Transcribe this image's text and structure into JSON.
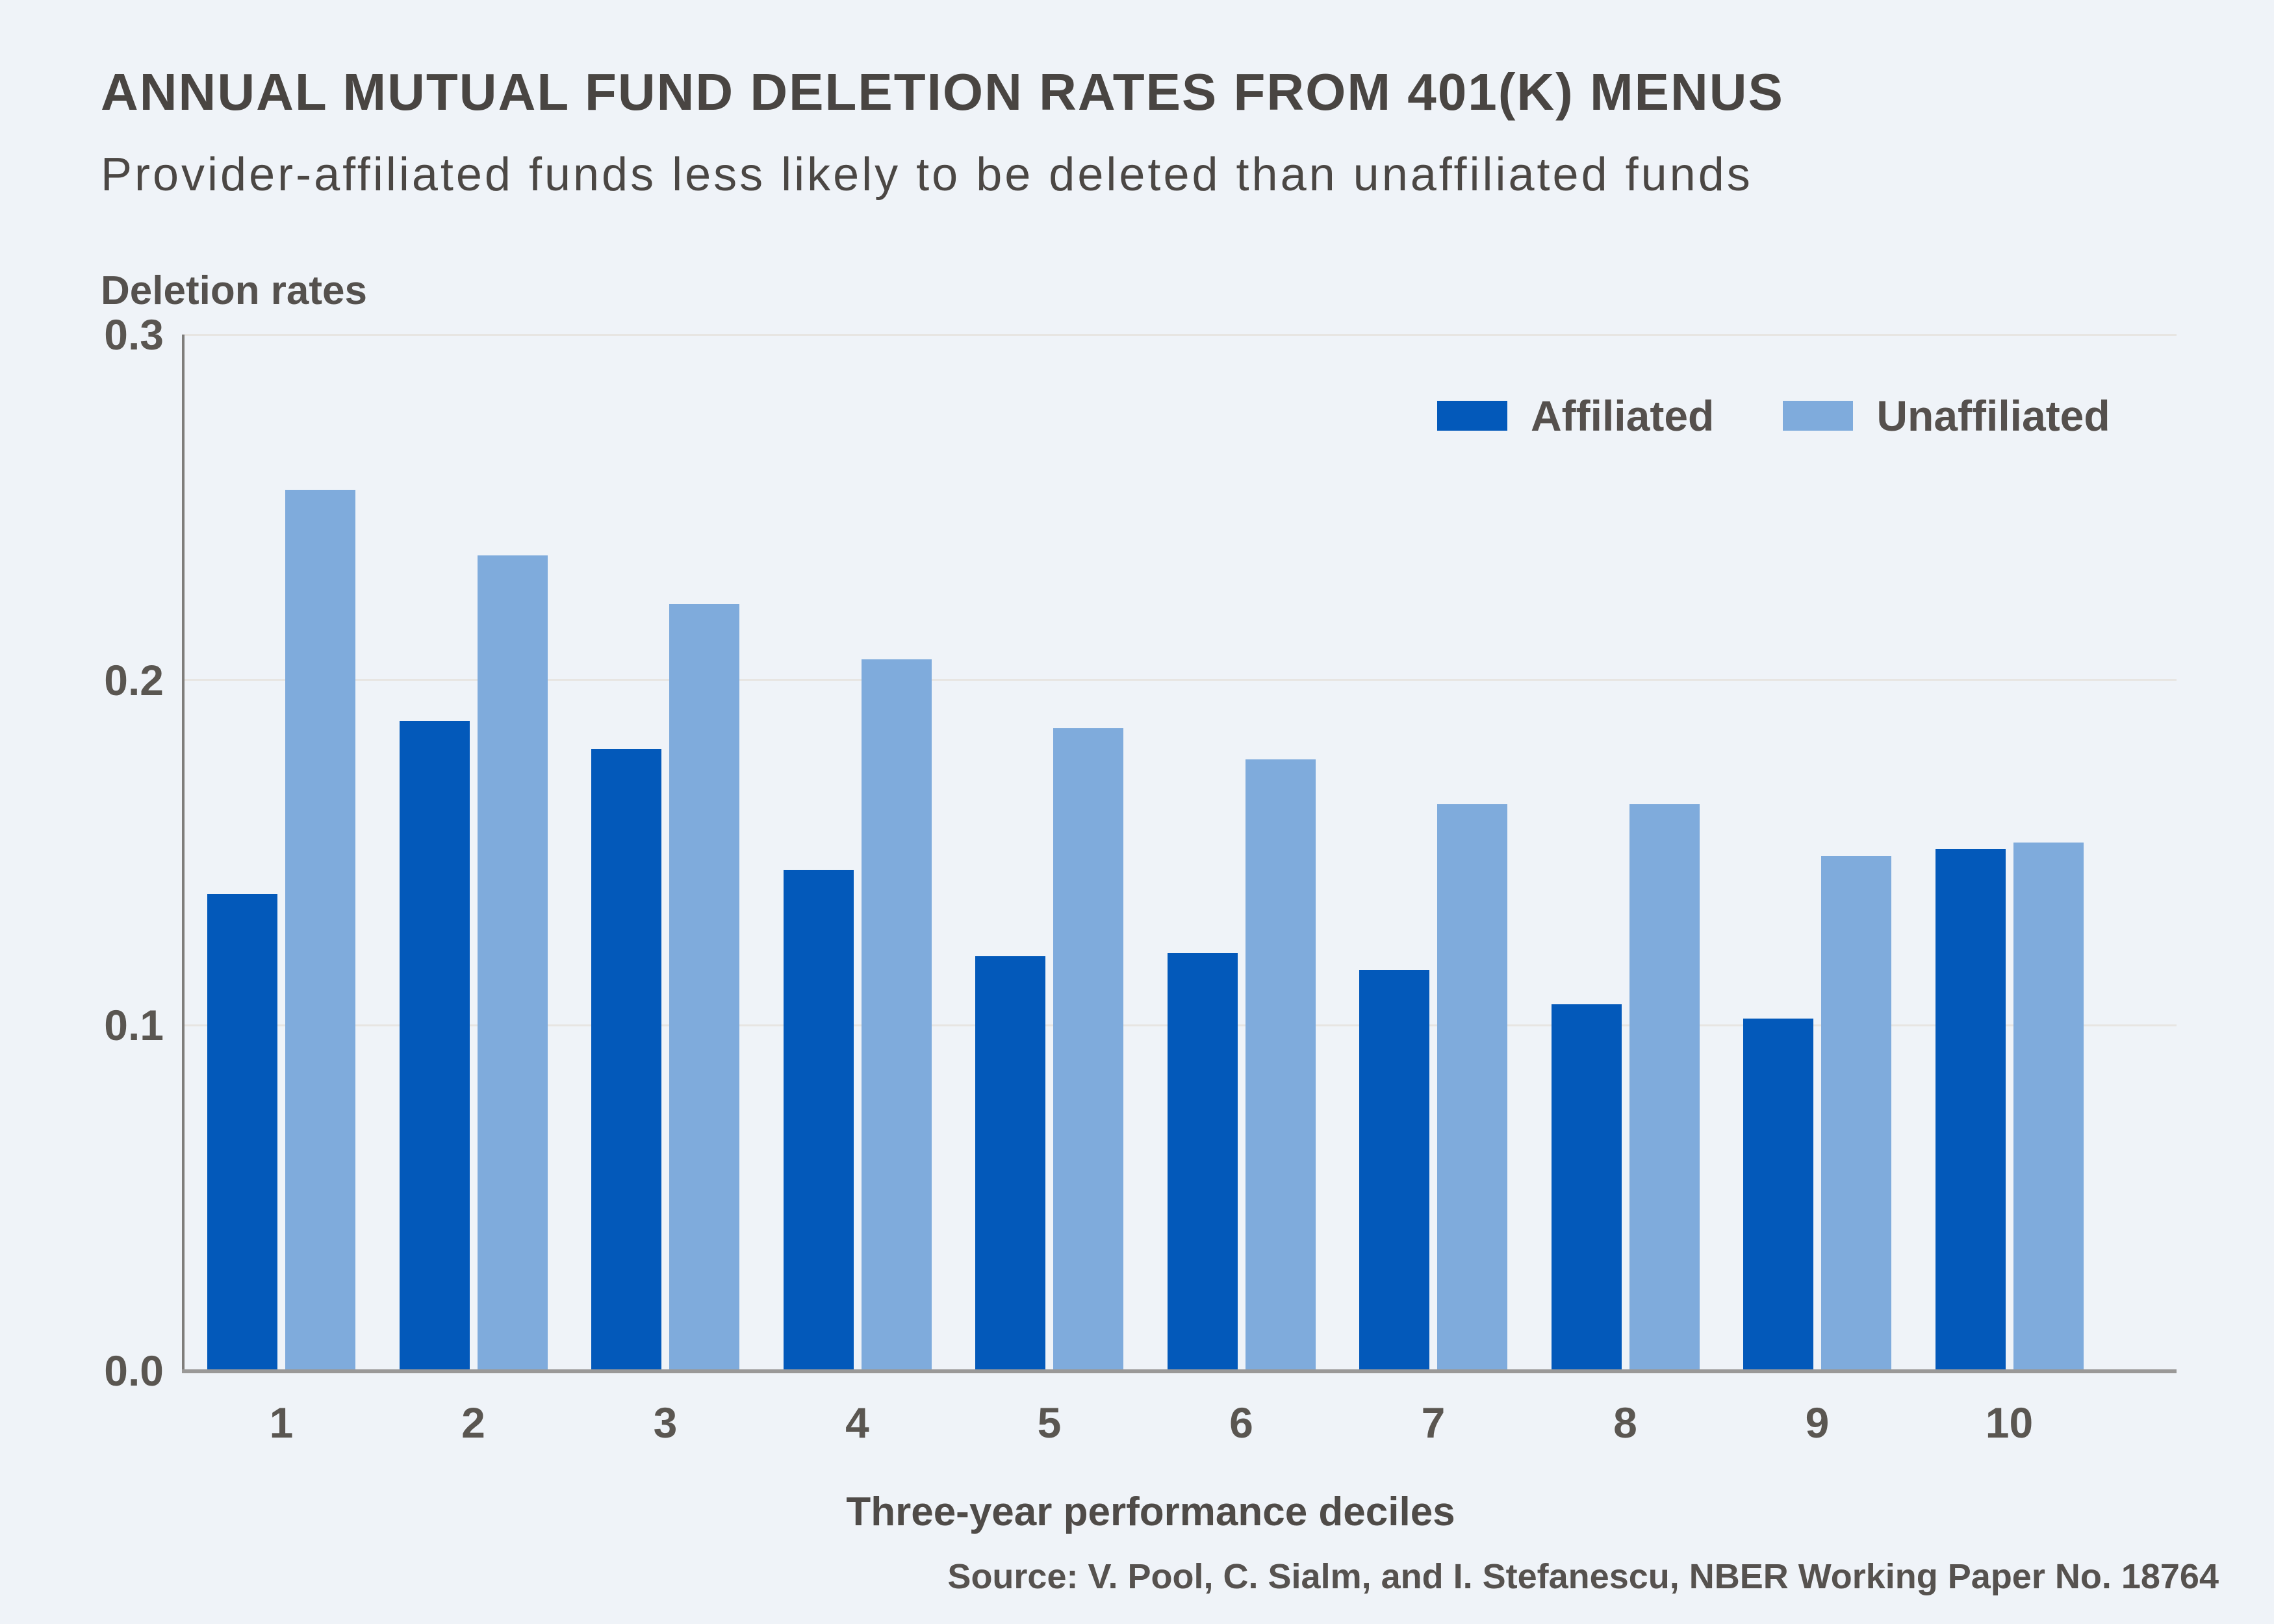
{
  "page": {
    "background_color": "#EFF3F8",
    "title_color": "#494542",
    "text_color": "#55514E",
    "gridline_color": "#E7E5E2",
    "axis_color": "#9A9998"
  },
  "chart_data": {
    "type": "bar",
    "title": "ANNUAL MUTUAL FUND DELETION RATES FROM 401(K) MENUS",
    "subtitle": "Provider-affiliated funds less likely to be deleted than unaffiliated funds",
    "ylabel": "Deletion rates",
    "xlabel": "Three-year performance deciles",
    "source": "Source: V. Pool, C. Sialm, and I. Stefanescu, NBER Working Paper No. 18764",
    "categories": [
      "1",
      "2",
      "3",
      "4",
      "5",
      "6",
      "7",
      "8",
      "9",
      "10"
    ],
    "series": [
      {
        "name": "Affiliated",
        "color": "#0359BA",
        "values": [
          0.138,
          0.188,
          0.18,
          0.145,
          0.12,
          0.121,
          0.116,
          0.106,
          0.102,
          0.151
        ]
      },
      {
        "name": "Unaffiliated",
        "color": "#7FABDC",
        "values": [
          0.255,
          0.236,
          0.222,
          0.206,
          0.186,
          0.177,
          0.164,
          0.164,
          0.149,
          0.153
        ]
      }
    ],
    "ylim": [
      0,
      0.3
    ],
    "yticks": [
      0.0,
      0.1,
      0.2,
      0.3
    ],
    "ytick_labels": [
      "0.0",
      "0.1",
      "0.2",
      "0.3"
    ],
    "grid": true,
    "legend_position": "top-right"
  }
}
